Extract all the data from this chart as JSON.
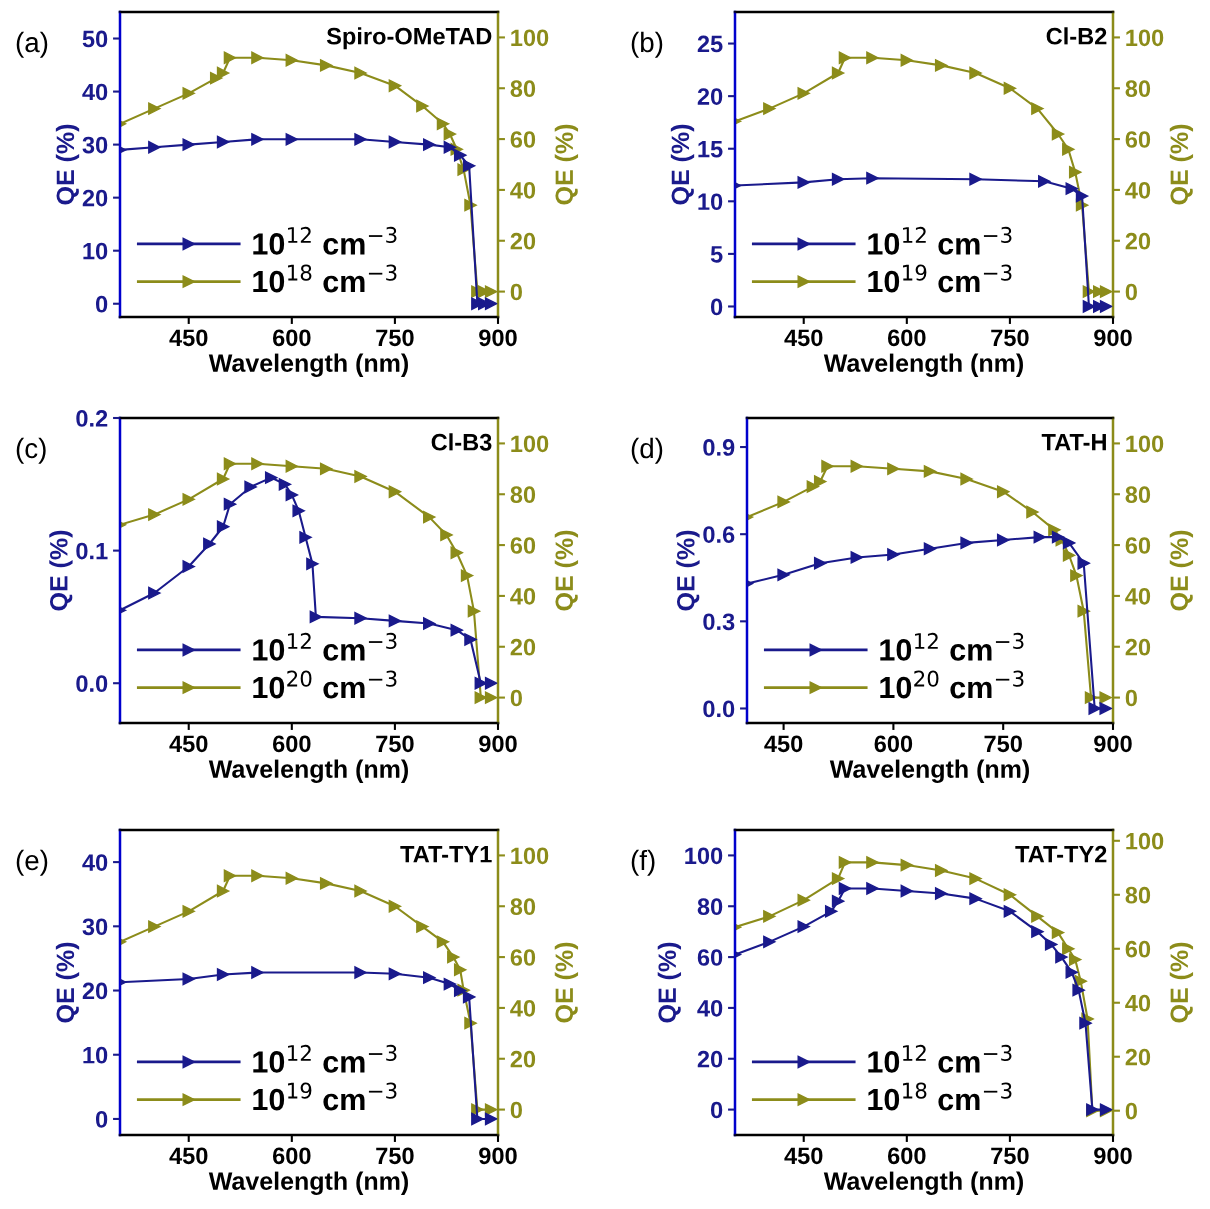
{
  "chart_data": [
    {
      "type": "line",
      "xlabel": "Wavelength (nm)",
      "ylabel": "QE (%)",
      "y2label": "QE (%)",
      "annotations": [
        "(a)",
        "Spiro-OMeTAD"
      ],
      "xlim": [
        350,
        900
      ],
      "xticks": [
        450,
        600,
        750,
        900
      ],
      "ylim": [
        -2.5,
        55
      ],
      "yticks": [
        0,
        10,
        20,
        30,
        40,
        50
      ],
      "y2lim": [
        -10,
        110
      ],
      "y2ticks": [
        0,
        20,
        40,
        60,
        80,
        100
      ],
      "marker": "triangle",
      "line_style": "solid",
      "legend": "bottom left",
      "grid": false,
      "series": [
        {
          "name": "10$^{12}$ cm$^{−3}$",
          "color": "#1a1a8c",
          "x": [
            350,
            400,
            450,
            500,
            550,
            600,
            700,
            750,
            800,
            830,
            845,
            858,
            870,
            880,
            890
          ],
          "values": [
            29,
            29.5,
            30,
            30.5,
            31,
            31,
            31,
            30.5,
            30,
            29.5,
            28,
            26,
            0,
            0,
            0
          ]
        },
        {
          "name": "10$^{18}$ cm$^{−3}$",
          "color": "#8c8c1a",
          "axis": "y2",
          "x": [
            350,
            400,
            450,
            490,
            500,
            510,
            550,
            600,
            650,
            700,
            750,
            790,
            820,
            830,
            840,
            850,
            860,
            870,
            880,
            890
          ],
          "values": [
            66,
            72,
            78,
            84,
            86,
            92,
            92,
            91,
            89,
            86,
            81,
            73,
            66,
            62,
            56,
            48,
            34,
            0,
            0,
            0
          ]
        }
      ]
    },
    {
      "type": "line",
      "xlabel": "Wavelength (nm)",
      "ylabel": "QE (%)",
      "y2label": "QE (%)",
      "annotations": [
        "(b)",
        "Cl-B2"
      ],
      "xlim": [
        350,
        900
      ],
      "xticks": [
        450,
        600,
        750,
        900
      ],
      "ylim": [
        -1,
        28
      ],
      "yticks": [
        0,
        5,
        10,
        15,
        20,
        25
      ],
      "y2lim": [
        -10,
        110
      ],
      "y2ticks": [
        0,
        20,
        40,
        60,
        80,
        100
      ],
      "marker": "triangle",
      "line_style": "solid",
      "legend": "bottom left",
      "grid": false,
      "series": [
        {
          "name": "10$^{12}$ cm$^{−3}$",
          "color": "#1a1a8c",
          "x": [
            350,
            450,
            500,
            550,
            700,
            800,
            840,
            855,
            865,
            880,
            890
          ],
          "values": [
            11.5,
            11.8,
            12.1,
            12.2,
            12.1,
            11.9,
            11.2,
            10.5,
            0,
            0,
            0
          ]
        },
        {
          "name": "10$^{19}$ cm$^{−3}$",
          "color": "#8c8c1a",
          "axis": "y2",
          "x": [
            350,
            400,
            450,
            500,
            510,
            550,
            600,
            650,
            700,
            750,
            790,
            820,
            835,
            845,
            855,
            865,
            880,
            890
          ],
          "values": [
            67,
            72,
            78,
            86,
            92,
            92,
            91,
            89,
            86,
            80,
            72,
            62,
            56,
            47,
            34,
            0,
            0,
            0
          ]
        }
      ]
    },
    {
      "type": "line",
      "xlabel": "Wavelength (nm)",
      "ylabel": "QE (%)",
      "y2label": "QE (%)",
      "annotations": [
        "(c)",
        "Cl-B3"
      ],
      "xlim": [
        350,
        900
      ],
      "xticks": [
        450,
        600,
        750,
        900
      ],
      "ylim": [
        -0.03,
        0.2
      ],
      "yticks": [
        {
          "value": 0,
          "label": "0.0"
        },
        0.1,
        0.2
      ],
      "y2lim": [
        -10,
        110
      ],
      "y2ticks": [
        0,
        20,
        40,
        60,
        80,
        100
      ],
      "marker": "triangle",
      "line_style": "solid",
      "legend": "bottom left",
      "grid": false,
      "series": [
        {
          "name": "10$^{12}$ cm$^{−3}$",
          "color": "#1a1a8c",
          "x": [
            350,
            400,
            450,
            480,
            500,
            510,
            540,
            570,
            590,
            600,
            610,
            620,
            630,
            635,
            700,
            750,
            800,
            840,
            860,
            875,
            890
          ],
          "values": [
            0.055,
            0.068,
            0.088,
            0.105,
            0.118,
            0.135,
            0.148,
            0.155,
            0.15,
            0.142,
            0.13,
            0.11,
            0.09,
            0.05,
            0.049,
            0.047,
            0.045,
            0.04,
            0.033,
            0,
            0
          ]
        },
        {
          "name": "10$^{20}$ cm$^{−3}$",
          "color": "#8c8c1a",
          "axis": "y2",
          "x": [
            350,
            400,
            450,
            500,
            510,
            550,
            600,
            650,
            700,
            750,
            800,
            825,
            840,
            855,
            865,
            875,
            890
          ],
          "values": [
            68,
            72,
            78,
            86,
            92,
            92,
            91,
            90,
            87,
            81,
            71,
            64,
            57,
            48,
            34,
            0,
            0
          ]
        }
      ]
    },
    {
      "type": "line",
      "xlabel": "Wavelength (nm)",
      "ylabel": "QE (%)",
      "y2label": "QE (%)",
      "annotations": [
        "(d)",
        "TAT-H"
      ],
      "xlim": [
        400,
        900
      ],
      "xticks": [
        450,
        600,
        750,
        900
      ],
      "ylim": [
        -0.05,
        1.0
      ],
      "yticks": [
        {
          "value": 0,
          "label": "0.0"
        },
        0.3,
        0.6,
        0.9
      ],
      "y2lim": [
        -10,
        110
      ],
      "y2ticks": [
        0,
        20,
        40,
        60,
        80,
        100
      ],
      "marker": "triangle",
      "line_style": "solid",
      "legend": "bottom left",
      "grid": false,
      "series": [
        {
          "name": "10$^{12}$ cm$^{−3}$",
          "color": "#1a1a8c",
          "x": [
            400,
            450,
            500,
            550,
            600,
            650,
            700,
            750,
            800,
            825,
            840,
            860,
            875,
            890
          ],
          "values": [
            0.43,
            0.46,
            0.5,
            0.52,
            0.53,
            0.55,
            0.57,
            0.58,
            0.59,
            0.59,
            0.57,
            0.5,
            0,
            0
          ]
        },
        {
          "name": "10$^{20}$ cm$^{−3}$",
          "color": "#8c8c1a",
          "axis": "y2",
          "x": [
            400,
            450,
            490,
            500,
            510,
            550,
            600,
            650,
            700,
            750,
            790,
            820,
            830,
            840,
            850,
            860,
            870,
            890
          ],
          "values": [
            71,
            77,
            83,
            85,
            91,
            91,
            90,
            89,
            86,
            81,
            73,
            66,
            62,
            56,
            48,
            34,
            0,
            0
          ]
        }
      ]
    },
    {
      "type": "line",
      "xlabel": "Wavelength (nm)",
      "ylabel": "QE (%)",
      "y2label": "QE (%)",
      "annotations": [
        "(e)",
        "TAT-TY1"
      ],
      "xlim": [
        350,
        900
      ],
      "xticks": [
        450,
        600,
        750,
        900
      ],
      "ylim": [
        -2.5,
        45
      ],
      "yticks": [
        0,
        10,
        20,
        30,
        40
      ],
      "y2lim": [
        -10,
        110
      ],
      "y2ticks": [
        0,
        20,
        40,
        60,
        80,
        100
      ],
      "marker": "triangle",
      "line_style": "solid",
      "legend": "bottom left",
      "grid": false,
      "series": [
        {
          "name": "10$^{12}$ cm$^{−3}$",
          "color": "#1a1a8c",
          "x": [
            350,
            450,
            500,
            550,
            700,
            750,
            800,
            830,
            845,
            858,
            870,
            890
          ],
          "values": [
            21.3,
            21.8,
            22.5,
            22.8,
            22.8,
            22.6,
            22,
            21,
            20,
            19,
            0,
            0
          ]
        },
        {
          "name": "10$^{19}$ cm$^{−3}$",
          "color": "#8c8c1a",
          "axis": "y2",
          "x": [
            350,
            400,
            450,
            500,
            510,
            550,
            600,
            650,
            700,
            750,
            790,
            820,
            835,
            845,
            850,
            860,
            870,
            890
          ],
          "values": [
            66,
            72,
            78,
            86,
            92,
            92,
            91,
            89,
            86,
            80,
            72,
            66,
            60,
            55,
            47,
            34,
            0,
            0
          ]
        }
      ]
    },
    {
      "type": "line",
      "xlabel": "Wavelength (nm)",
      "ylabel": "QE (%)",
      "y2label": "QE (%)",
      "annotations": [
        "(f)",
        "TAT-TY2"
      ],
      "xlim": [
        350,
        900
      ],
      "xticks": [
        450,
        600,
        750,
        900
      ],
      "ylim": [
        -10,
        110
      ],
      "yticks": [
        0,
        20,
        40,
        60,
        80,
        100
      ],
      "y2lim": [
        -9,
        104
      ],
      "y2ticks": [
        0,
        20,
        40,
        60,
        80,
        100
      ],
      "marker": "triangle",
      "line_style": "solid",
      "legend": "bottom left",
      "grid": false,
      "series": [
        {
          "name": "10$^{12}$ cm$^{−3}$",
          "color": "#1a1a8c",
          "x": [
            350,
            400,
            450,
            490,
            500,
            510,
            550,
            600,
            650,
            700,
            750,
            790,
            810,
            825,
            840,
            850,
            860,
            870,
            890
          ],
          "values": [
            61,
            66,
            72,
            78,
            82,
            87,
            87,
            86,
            85,
            83,
            78,
            70,
            65,
            60,
            54,
            47,
            34,
            0,
            0
          ]
        },
        {
          "name": "10$^{18}$ cm$^{−3}$",
          "color": "#8c8c1a",
          "axis": "y2",
          "x": [
            350,
            400,
            450,
            500,
            510,
            550,
            600,
            650,
            700,
            750,
            790,
            820,
            835,
            845,
            853,
            863,
            870,
            890
          ],
          "values": [
            68,
            72,
            78,
            86,
            92,
            92,
            91,
            89,
            86,
            80,
            72,
            66,
            60,
            56,
            48,
            34,
            0,
            0
          ]
        }
      ]
    }
  ]
}
